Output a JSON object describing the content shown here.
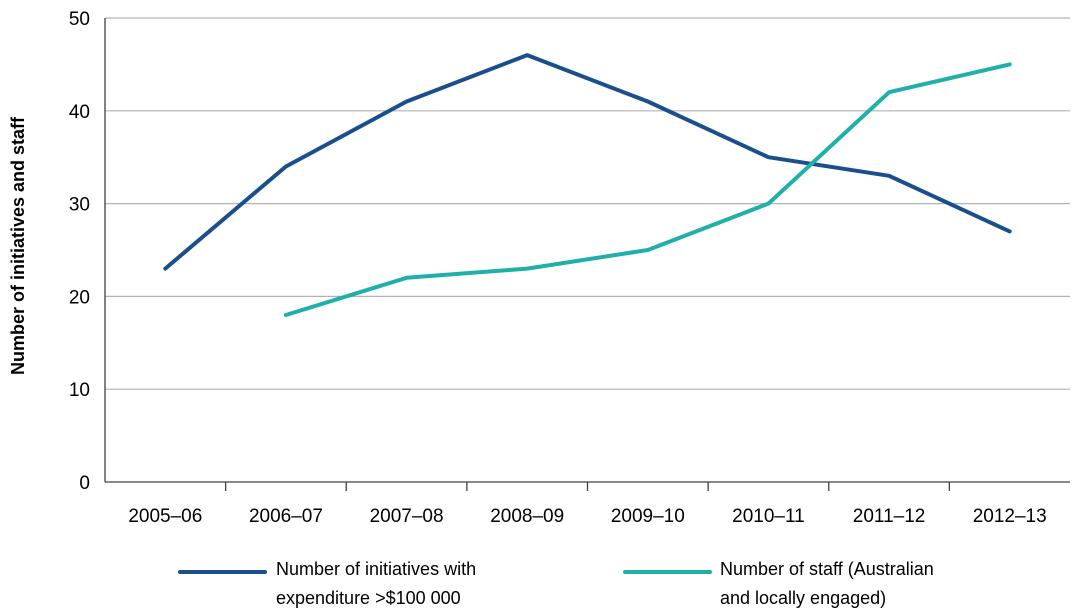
{
  "chart_data": {
    "type": "line",
    "title": "",
    "xlabel": "",
    "ylabel": "Number of initiatives and staff",
    "ylim": [
      0,
      50
    ],
    "yticks": [
      0,
      10,
      20,
      30,
      40,
      50
    ],
    "grid": true,
    "categories": [
      "2005–06",
      "2006–07",
      "2007–08",
      "2008–09",
      "2009–10",
      "2010–11",
      "2011–12",
      "2012–13"
    ],
    "series": [
      {
        "name": "Number of initiatives with expenditure >$100 000",
        "legend_lines": [
          "Number of initiatives with",
          "expenditure >$100 000"
        ],
        "color": "#1b4f8c",
        "values": [
          23,
          34,
          41,
          46,
          41,
          35,
          33,
          27
        ]
      },
      {
        "name": "Number of staff (Australian and locally engaged)",
        "legend_lines": [
          "Number of staff (Australian",
          "and locally engaged)"
        ],
        "color": "#1fb0a9",
        "values": [
          null,
          18,
          22,
          23,
          25,
          30,
          42,
          45
        ]
      }
    ],
    "legend_position": "bottom"
  }
}
